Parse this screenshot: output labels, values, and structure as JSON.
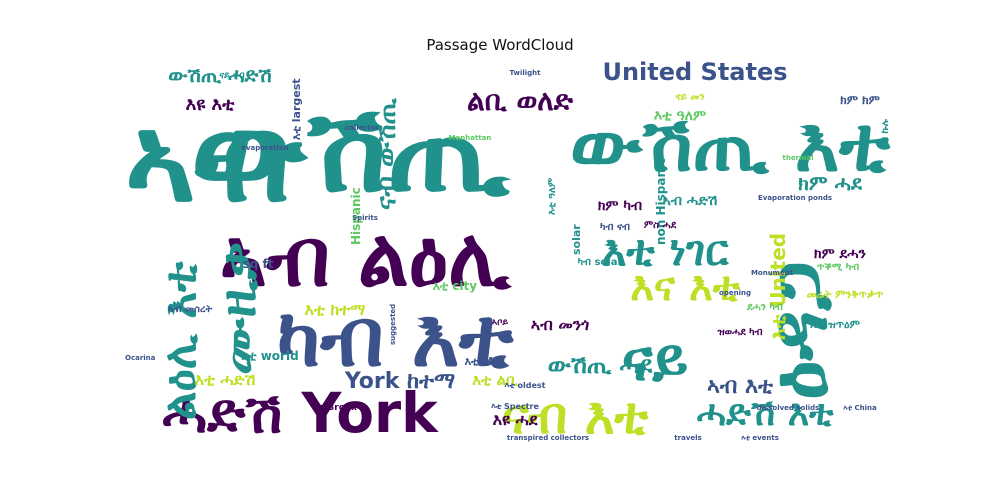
{
  "chart_data": {
    "type": "wordcloud",
    "title": "Passage WordCloud",
    "colormap": [
      "#440154",
      "#3b528b",
      "#21918c",
      "#5ec962",
      "#bddf26"
    ],
    "words": [
      {
        "text": "ውሽጢ",
        "weight": 1.0,
        "color": "#21918c"
      },
      {
        "text": "ኣብ",
        "weight": 0.96,
        "color": "#21918c"
      },
      {
        "text": "ኣብ ልዕሊ",
        "weight": 0.82,
        "color": "#440154"
      },
      {
        "text": "ካብ እቲ",
        "weight": 0.8,
        "color": "#3b528b"
      },
      {
        "text": "ዕዳጋ",
        "weight": 0.74,
        "color": "#21918c"
      },
      {
        "text": "ውሽጢ እቲ",
        "weight": 0.72,
        "color": "#21918c"
      },
      {
        "text": "ሓድሽ York",
        "weight": 0.55,
        "color": "#440154"
      },
      {
        "text": "ልዕሊ እቲ",
        "weight": 0.5,
        "color": "#21918c"
      },
      {
        "text": "ናብ እቲ",
        "weight": 0.48,
        "color": "#bddf26"
      },
      {
        "text": "ናይ",
        "weight": 0.47,
        "color": "#21918c"
      },
      {
        "text": "ሙዚቃ",
        "weight": 0.44,
        "color": "#21918c"
      },
      {
        "text": "እቲ ነገር",
        "weight": 0.4,
        "color": "#21918c"
      },
      {
        "text": "እና እቲ",
        "weight": 0.4,
        "color": "#bddf26"
      },
      {
        "text": "ሓድሽ እቲ",
        "weight": 0.38,
        "color": "#21918c"
      },
      {
        "text": "ልቢ ወለድ",
        "weight": 0.25,
        "color": "#440154"
      },
      {
        "text": "United States",
        "weight": 0.25,
        "color": "#3b528b"
      },
      {
        "text": "ውሽጢ ሓድሽ",
        "weight": 0.2,
        "color": "#21918c"
      },
      {
        "text": "ናብ ውሽጢ",
        "weight": 0.28,
        "color": "#21918c"
      },
      {
        "text": "York ከተማ",
        "weight": 0.22,
        "color": "#3b528b"
      },
      {
        "text": "ውሽጢ ሓደ",
        "weight": 0.22,
        "color": "#21918c"
      },
      {
        "text": "ኣብ እቲ",
        "weight": 0.2,
        "color": "#3b528b"
      },
      {
        "text": "እቲ United",
        "weight": 0.2,
        "color": "#bddf26"
      },
      {
        "text": "ክም ሓደ",
        "weight": 0.18,
        "color": "#21918c"
      },
      {
        "text": "እዩ እቲ",
        "weight": 0.16,
        "color": "#440154"
      },
      {
        "text": "እዩ ሓደ",
        "weight": 0.14,
        "color": "#440154"
      },
      {
        "text": "እቲ ከተማ",
        "weight": 0.14,
        "color": "#bddf26"
      },
      {
        "text": "እቲ ሓድሽ",
        "weight": 0.14,
        "color": "#bddf26"
      },
      {
        "text": "ኣብ መንጎ",
        "weight": 0.14,
        "color": "#440154"
      },
      {
        "text": "እቲ ልቢ",
        "weight": 0.13,
        "color": "#bddf26"
      },
      {
        "text": "እቲ city",
        "weight": 0.12,
        "color": "#5ec962"
      },
      {
        "text": "ክም ደሓን",
        "weight": 0.12,
        "color": "#440154"
      },
      {
        "text": "ኣብ ሓድሽ",
        "weight": 0.12,
        "color": "#21918c"
      },
      {
        "text": "እቲ ዓለም",
        "weight": 0.12,
        "color": "#5ec962"
      },
      {
        "text": "ክም ካብ",
        "weight": 0.12,
        "color": "#440154"
      },
      {
        "text": "Hispanic",
        "weight": 0.1,
        "color": "#5ec962"
      },
      {
        "text": "non Hispanic",
        "weight": 0.1,
        "color": "#21918c"
      },
      {
        "text": "solar",
        "weight": 0.09,
        "color": "#21918c"
      },
      {
        "text": "sq ft",
        "weight": 0.09,
        "color": "#3b528b"
      },
      {
        "text": "እቲ world",
        "weight": 0.09,
        "color": "#21918c"
      },
      {
        "text": "እቲ largest",
        "weight": 0.08,
        "color": "#3b528b"
      },
      {
        "text": "እቲ MW",
        "weight": 0.08,
        "color": "#3b528b"
      },
      {
        "text": "እቲ ዓለም",
        "weight": 0.07,
        "color": "#21918c"
      },
      {
        "text": "ክም ክም",
        "weight": 0.07,
        "color": "#3b528b"
      },
      {
        "text": "መሬት ምንቅጥቃጥ",
        "weight": 0.07,
        "color": "#bddf26"
      },
      {
        "text": "ጥቕሚ ካብ",
        "weight": 0.06,
        "color": "#5ec962"
      },
      {
        "text": "እቲ ዝጥዕም",
        "weight": 0.06,
        "color": "#21918c"
      },
      {
        "text": "ኣብ መሰረት",
        "weight": 0.06,
        "color": "#3b528b"
      },
      {
        "text": "እቲ Bronx",
        "weight": 0.05,
        "color": "#440154"
      },
      {
        "text": "እቲ oldest",
        "weight": 0.04,
        "color": "#3b528b"
      },
      {
        "text": "እቲ Spectre",
        "weight": 0.04,
        "color": "#3b528b"
      },
      {
        "text": "Twilight",
        "weight": 0.04,
        "color": "#3b528b"
      },
      {
        "text": "collector",
        "weight": 0.04,
        "color": "#3b528b"
      },
      {
        "text": "opening",
        "weight": 0.04,
        "color": "#3b528b"
      },
      {
        "text": "Evaporation ponds",
        "weight": 0.04,
        "color": "#3b528b"
      },
      {
        "text": "dissolved solids",
        "weight": 0.03,
        "color": "#3b528b"
      },
      {
        "text": "transpired collectors",
        "weight": 0.03,
        "color": "#3b528b"
      },
      {
        "text": "suggested",
        "weight": 0.03,
        "color": "#3b528b"
      },
      {
        "text": "travels",
        "weight": 0.03,
        "color": "#3b528b"
      },
      {
        "text": "Ocarina",
        "weight": 0.03,
        "color": "#3b528b"
      },
      {
        "text": "thermal",
        "weight": 0.03,
        "color": "#5ec962"
      },
      {
        "text": "Monument",
        "weight": 0.03,
        "color": "#3b528b"
      },
      {
        "text": "እቲ China",
        "weight": 0.03,
        "color": "#3b528b"
      },
      {
        "text": "እቲ events",
        "weight": 0.03,
        "color": "#3b528b"
      },
      {
        "text": "evaporation",
        "weight": 0.03,
        "color": "#3b528b"
      },
      {
        "text": "Spirits",
        "weight": 0.03,
        "color": "#3b528b"
      },
      {
        "text": "Manhattan",
        "weight": 0.03,
        "color": "#5ec962"
      },
      {
        "text": "ናብ ኩሉ",
        "weight": 0.05,
        "color": "#21918c"
      },
      {
        "text": "ካብ ናብ",
        "weight": 0.05,
        "color": "#3b528b"
      },
      {
        "text": "ናይ መን",
        "weight": 0.05,
        "color": "#bddf26"
      },
      {
        "text": "ምስ ሓደ",
        "weight": 0.05,
        "color": "#440154"
      },
      {
        "text": "ካብ solar",
        "weight": 0.05,
        "color": "#21918c"
      },
      {
        "text": "ደሓን ካብ",
        "weight": 0.05,
        "color": "#5ec962"
      },
      {
        "text": "ዝወሓደ ካብ",
        "weight": 0.05,
        "color": "#440154"
      },
      {
        "text": "ኣቦይ",
        "weight": 0.04,
        "color": "#440154"
      },
      {
        "text": "ናይ ናብ",
        "weight": 0.04,
        "color": "#21918c"
      }
    ]
  }
}
